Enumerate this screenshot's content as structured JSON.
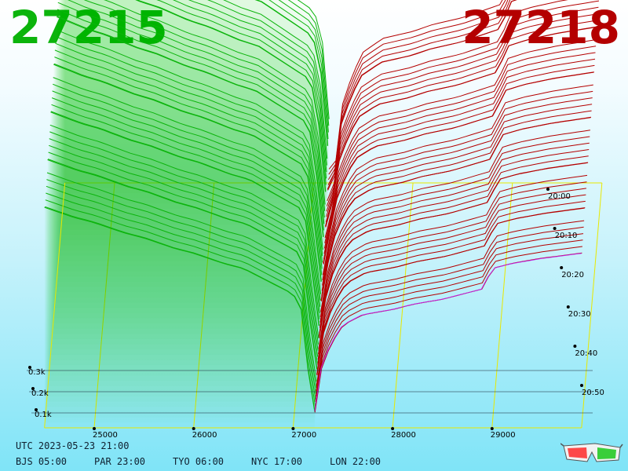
{
  "header": {
    "bid_price": "27215",
    "ask_price": "27218"
  },
  "footer": {
    "utc": "UTC 2023-05-23 21:00",
    "zones": [
      {
        "label": "BJS 05:00"
      },
      {
        "label": "PAR 23:00"
      },
      {
        "label": "TYO 06:00"
      },
      {
        "label": "NYC 17:00"
      },
      {
        "label": "LON 22:00"
      }
    ]
  },
  "colors": {
    "bid": "#0cb40c",
    "ask": "#b40000",
    "latest_ask": "#c020e0",
    "grid": "#e8e800"
  },
  "icons": {
    "glasses": "3d-glasses-icon"
  },
  "chart_data": {
    "type": "area",
    "title": "",
    "x_axis": {
      "label": "",
      "ticks": [
        "25000",
        "26000",
        "27000",
        "28000",
        "29000"
      ],
      "range": [
        24500,
        29900
      ]
    },
    "z_axis": {
      "label": "",
      "ticks": [
        "0.1k",
        "0.2k",
        "0.3k"
      ]
    },
    "time_axis": {
      "label": "",
      "ticks": [
        "20:50",
        "20:40",
        "20:30",
        "20:20",
        "20:10",
        "20:00"
      ]
    },
    "mid_price": 27216,
    "series": [
      {
        "name": "27215",
        "side": "bid",
        "x": [
          24500,
          24800,
          25000,
          25300,
          25500,
          25800,
          26000,
          26300,
          26500,
          26700,
          26900,
          27000,
          27080,
          27150,
          27215
        ],
        "y": [
          0.42,
          0.4,
          0.39,
          0.37,
          0.36,
          0.34,
          0.33,
          0.31,
          0.3,
          0.28,
          0.26,
          0.25,
          0.22,
          0.1,
          0.02
        ]
      },
      {
        "name": "27218",
        "side": "ask",
        "x": [
          27218,
          27250,
          27300,
          27400,
          27500,
          27700,
          28000,
          28200,
          28500,
          28700,
          28900,
          29000,
          29200,
          29500,
          29900
        ],
        "y": [
          0.02,
          0.08,
          0.12,
          0.16,
          0.19,
          0.21,
          0.22,
          0.23,
          0.24,
          0.25,
          0.26,
          0.3,
          0.31,
          0.32,
          0.33
        ]
      }
    ],
    "grid": true
  }
}
